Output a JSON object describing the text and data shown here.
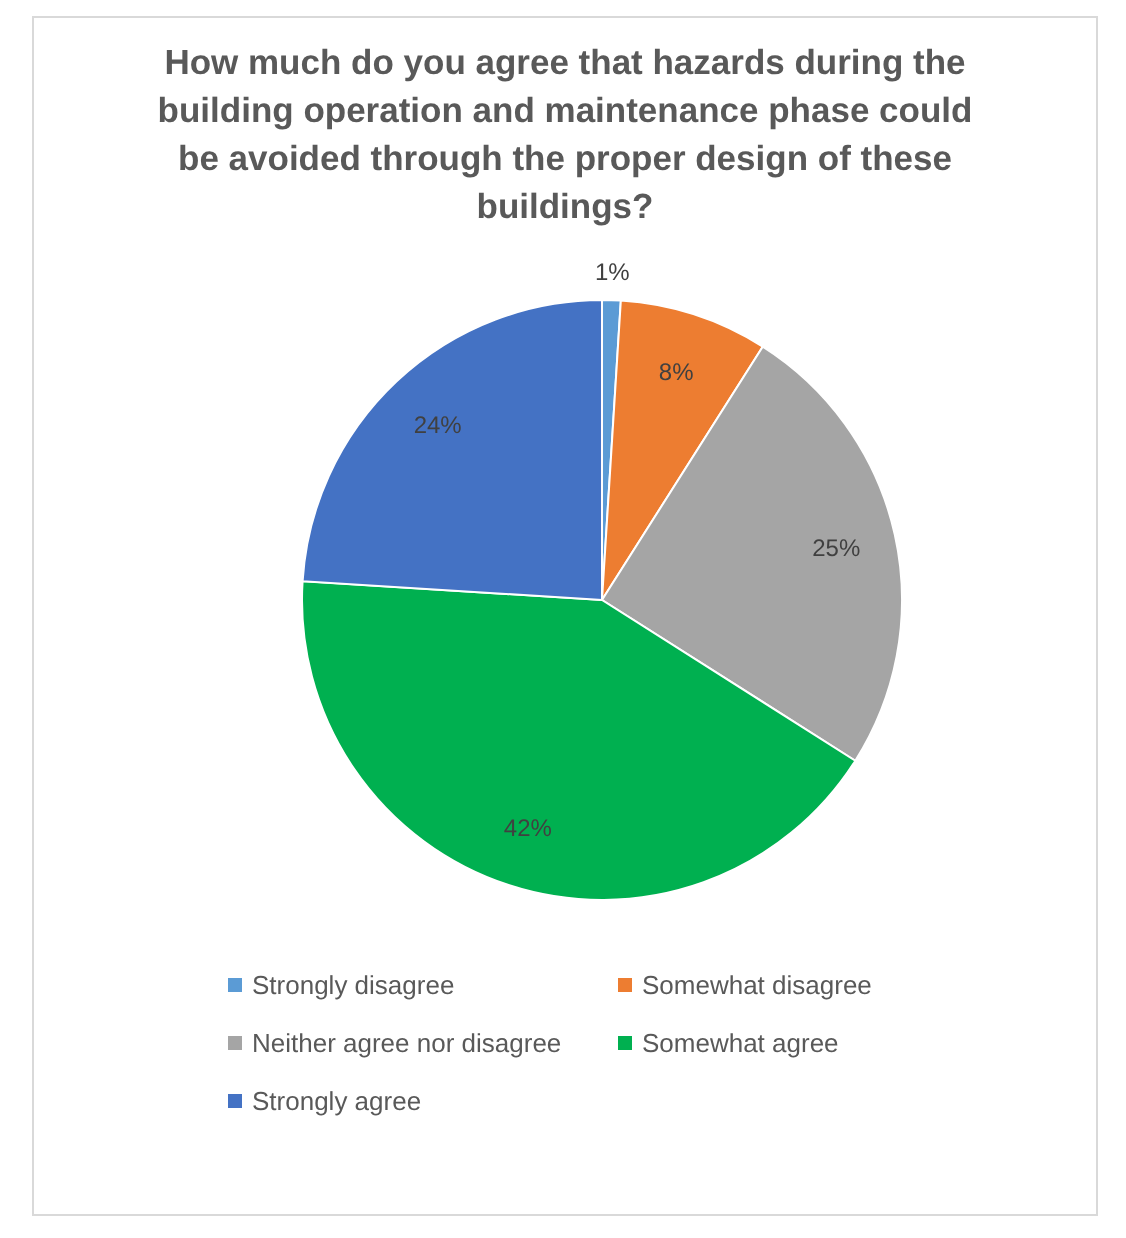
{
  "chart_data": {
    "type": "pie",
    "title": "How much do you agree that hazards during the building operation and maintenance phase could be avoided through the proper design of these buildings?",
    "categories": [
      "Strongly disagree",
      "Somewhat disagree",
      "Neither agree nor disagree",
      "Somewhat agree",
      "Strongly agree"
    ],
    "values": [
      1,
      8,
      25,
      42,
      24
    ],
    "colors": [
      "#5b9bd5",
      "#ed7d31",
      "#a5a5a5",
      "#00b050",
      "#4472c4"
    ],
    "value_labels": [
      "1%",
      "8%",
      "25%",
      "42%",
      "24%"
    ],
    "legend": "bottom"
  }
}
